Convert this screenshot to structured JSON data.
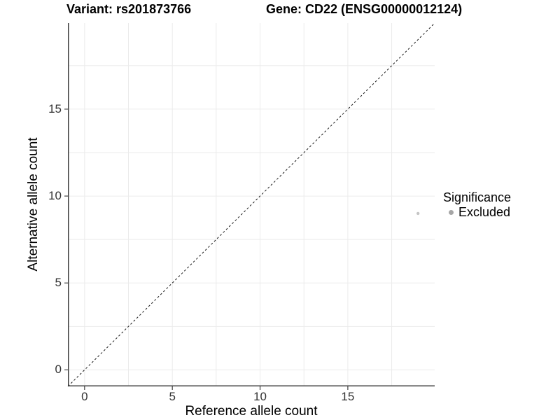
{
  "chart_data": {
    "type": "scatter",
    "title_left": "Variant: rs201873766",
    "title_right": "Gene: CD22 (ENSG00000012124)",
    "xlabel": "Reference allele count",
    "ylabel": "Alternative allele count",
    "xlim": [
      -0.95,
      19.95
    ],
    "ylim": [
      -0.95,
      19.95
    ],
    "xticks": [
      0,
      5,
      10,
      15
    ],
    "yticks": [
      0,
      5,
      10,
      15
    ],
    "gridlines": [
      0,
      2.5,
      5,
      7.5,
      10,
      12.5,
      15,
      17.5
    ],
    "grid_on": true,
    "reference_line": {
      "type": "identity",
      "slope": 1,
      "intercept": 0,
      "style": "dashed",
      "color": "#1a1a1a"
    },
    "series": [
      {
        "name": "Excluded",
        "color": "#c5c5c5",
        "point_radius": 2.2,
        "points": [
          {
            "x": 19,
            "y": 9
          }
        ]
      }
    ],
    "legend": {
      "title": "Significance",
      "position": "right",
      "items": [
        {
          "label": "Excluded",
          "color": "#a6a6a6"
        }
      ]
    },
    "colors": {
      "grid": "#ebebeb",
      "axis_line": "#404040",
      "tick_label": "#333333",
      "background": "#ffffff"
    }
  }
}
